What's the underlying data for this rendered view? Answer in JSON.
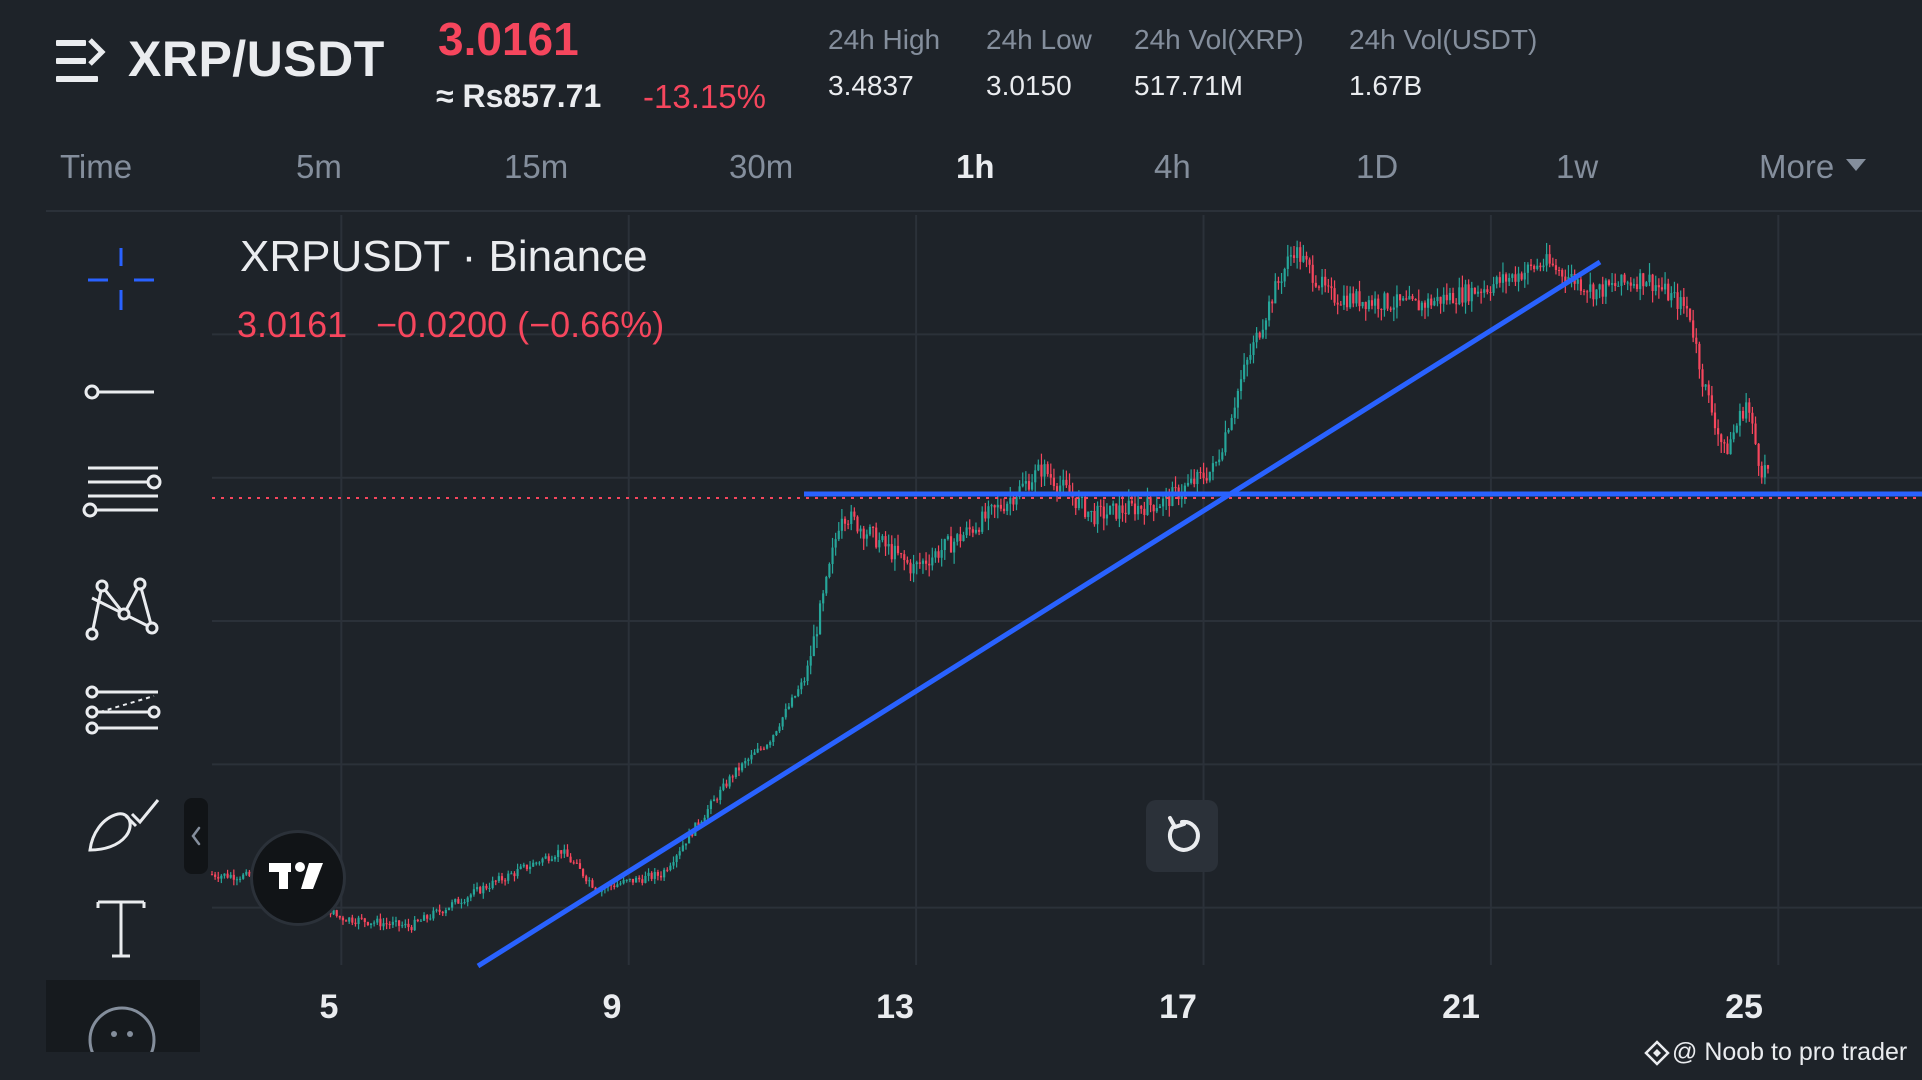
{
  "header": {
    "pair": "XRP/USDT",
    "last_price": "3.0161",
    "fiat_price": "≈ Rs857.71",
    "change_pct": "-13.15%",
    "stats": [
      {
        "label": "24h High",
        "value": "3.4837"
      },
      {
        "label": "24h Low",
        "value": "3.0150"
      },
      {
        "label": "24h Vol(XRP)",
        "value": "517.71M"
      },
      {
        "label": "24h Vol(USDT)",
        "value": "1.67B"
      }
    ]
  },
  "timeframes": {
    "items": [
      "Time",
      "5m",
      "15m",
      "30m",
      "1h",
      "4h",
      "1D",
      "1w",
      "More"
    ],
    "active": "1h"
  },
  "toolbar": {
    "tools": [
      "crosshair-icon",
      "horizontal-line-icon",
      "fib-retracement-icon",
      "pattern-icon",
      "prediction-icon",
      "brush-icon",
      "text-icon",
      "more-icon"
    ],
    "collapse_glyph": "‹"
  },
  "chart": {
    "legend_title": "XRPUSDT · Binance",
    "legend_price": "3.0161",
    "legend_change": "−0.0200 (−0.66%)",
    "x_ticks": [
      "5",
      "9",
      "13",
      "17",
      "21",
      "25"
    ],
    "logo": "TradingView",
    "watermark": "@ Noob to pro trader"
  },
  "colors": {
    "background": "#1e2329",
    "up": "#26a69a",
    "down": "#f6465d",
    "trendline": "#2962ff",
    "grid": "#2b3139",
    "muted": "#848e9c"
  },
  "chart_data": {
    "type": "candlestick",
    "title": "XRPUSDT · Binance",
    "x_ticks": [
      "5",
      "9",
      "13",
      "17",
      "21",
      "25"
    ],
    "interval": "1h",
    "path_approx": [
      {
        "x": 3.2,
        "y": 2.17
      },
      {
        "x": 4.4,
        "y": 2.16
      },
      {
        "x": 5.0,
        "y": 2.08
      },
      {
        "x": 6.0,
        "y": 2.06
      },
      {
        "x": 7.0,
        "y": 2.14
      },
      {
        "x": 8.1,
        "y": 2.22
      },
      {
        "x": 8.6,
        "y": 2.14
      },
      {
        "x": 9.5,
        "y": 2.17
      },
      {
        "x": 10.5,
        "y": 2.38
      },
      {
        "x": 11.0,
        "y": 2.45
      },
      {
        "x": 11.5,
        "y": 2.58
      },
      {
        "x": 11.8,
        "y": 2.78
      },
      {
        "x": 12.0,
        "y": 2.93
      },
      {
        "x": 12.5,
        "y": 2.87
      },
      {
        "x": 13.0,
        "y": 2.81
      },
      {
        "x": 13.7,
        "y": 2.88
      },
      {
        "x": 14.3,
        "y": 2.95
      },
      {
        "x": 14.8,
        "y": 3.02
      },
      {
        "x": 15.5,
        "y": 2.92
      },
      {
        "x": 16.5,
        "y": 2.95
      },
      {
        "x": 17.2,
        "y": 3.02
      },
      {
        "x": 17.6,
        "y": 3.22
      },
      {
        "x": 18.0,
        "y": 3.38
      },
      {
        "x": 18.3,
        "y": 3.48
      },
      {
        "x": 18.8,
        "y": 3.38
      },
      {
        "x": 20.0,
        "y": 3.36
      },
      {
        "x": 21.0,
        "y": 3.4
      },
      {
        "x": 21.8,
        "y": 3.45
      },
      {
        "x": 22.5,
        "y": 3.39
      },
      {
        "x": 23.2,
        "y": 3.42
      },
      {
        "x": 23.8,
        "y": 3.35
      },
      {
        "x": 24.0,
        "y": 3.2
      },
      {
        "x": 24.3,
        "y": 3.05
      },
      {
        "x": 24.6,
        "y": 3.16
      },
      {
        "x": 24.8,
        "y": 3.02
      },
      {
        "x": 24.9,
        "y": 3.0161
      }
    ],
    "candle_count": 500
  }
}
